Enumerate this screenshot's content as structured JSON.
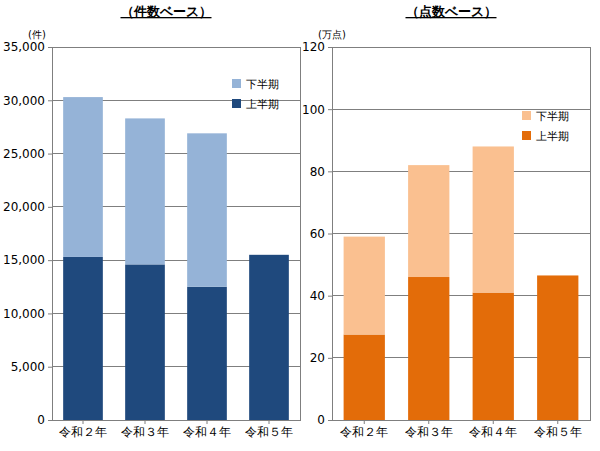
{
  "chart_data": [
    {
      "type": "bar",
      "title": "（件数ベース）",
      "ylabel": "(件)",
      "categories": [
        "令和２年",
        "令和３年",
        "令和４年",
        "令和５年"
      ],
      "series": [
        {
          "name": "上半期",
          "color": "#1f497d",
          "values": [
            15300,
            14600,
            12500,
            15500
          ]
        },
        {
          "name": "下半期",
          "color": "#95b3d7",
          "values": [
            15000,
            13700,
            14400,
            null
          ]
        }
      ],
      "stacked": true,
      "grid": true,
      "legend": "upper right",
      "ylim": [
        0,
        35000
      ],
      "yticks": [
        0,
        {
          "value": 5000,
          "label": "5,000"
        },
        {
          "value": 10000,
          "label": "10,000"
        },
        {
          "value": 15000,
          "label": "15,000"
        },
        {
          "value": 20000,
          "label": "20,000"
        },
        {
          "value": 25000,
          "label": "25,000"
        },
        {
          "value": 30000,
          "label": "30,000"
        },
        {
          "value": 35000,
          "label": "35,000"
        }
      ]
    },
    {
      "type": "bar",
      "title": "（点数ベース）",
      "ylabel": "(万点)",
      "categories": [
        "令和２年",
        "令和３年",
        "令和４年",
        "令和５年"
      ],
      "series": [
        {
          "name": "上半期",
          "color": "#e36c09",
          "values": [
            27.5,
            46,
            41,
            46.5
          ]
        },
        {
          "name": "下半期",
          "color": "#fac090",
          "values": [
            31.5,
            36,
            47,
            null
          ]
        }
      ],
      "stacked": true,
      "grid": true,
      "legend": "upper right",
      "ylim": [
        0,
        120
      ],
      "yticks": [
        0,
        20,
        40,
        60,
        80,
        100,
        120
      ]
    }
  ]
}
